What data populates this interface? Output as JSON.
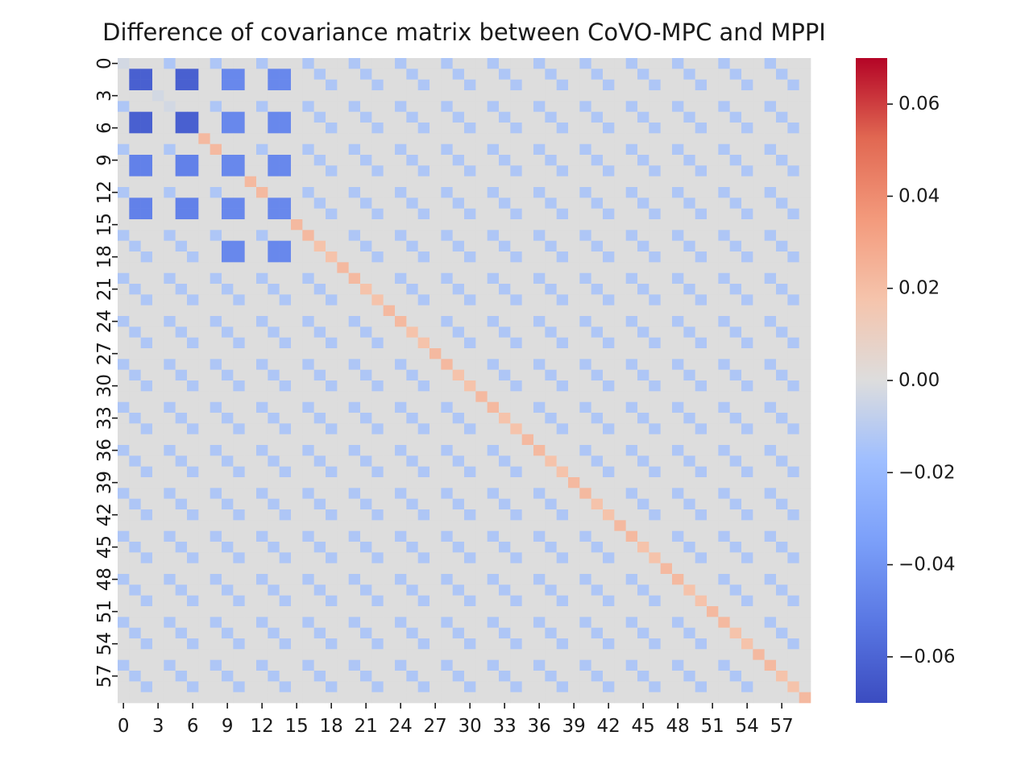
{
  "chart_data": {
    "type": "heatmap",
    "title": "Difference of covariance matrix between CoVO-MPC and MPPI",
    "xlabel": "",
    "ylabel": "",
    "size": 60,
    "x_tick_labels": [
      "0",
      "3",
      "6",
      "9",
      "12",
      "15",
      "18",
      "21",
      "24",
      "27",
      "30",
      "33",
      "36",
      "39",
      "42",
      "45",
      "48",
      "51",
      "54",
      "57"
    ],
    "y_tick_labels": [
      "0",
      "3",
      "6",
      "9",
      "12",
      "15",
      "18",
      "21",
      "24",
      "27",
      "30",
      "33",
      "36",
      "39",
      "42",
      "45",
      "48",
      "51",
      "54",
      "57"
    ],
    "colormap": "coolwarm",
    "vmin": -0.07,
    "vmax": 0.07,
    "colorbar_ticks": [
      0.06,
      0.04,
      0.02,
      0.0,
      -0.02,
      -0.04,
      -0.06
    ],
    "colorbar_tick_labels": [
      "0.06",
      "0.04",
      "0.02",
      "0.00",
      "−0.02",
      "−0.04",
      "−0.06"
    ],
    "description_of_values": {
      "background": 0.0,
      "diagonal_rows_0_to_6": -0.003,
      "diagonal_rows_7_to_59": 0.018,
      "diagonal_rows_7_to_59_max": 0.022,
      "offdiag_same_residue_mod4_nonzero": -0.013,
      "strong_blocks": [
        {
          "rows": [
            1,
            2,
            5,
            6
          ],
          "cols": [
            1,
            2,
            5,
            6
          ],
          "value": -0.062
        },
        {
          "rows": [
            1,
            2,
            5,
            6,
            9,
            10,
            13,
            14,
            17,
            18
          ],
          "cols": [
            9,
            10,
            13,
            14
          ],
          "value": -0.045
        },
        {
          "rows": [
            9,
            10,
            13,
            14
          ],
          "cols": [
            1,
            2,
            5,
            6
          ],
          "value": -0.048
        }
      ]
    }
  }
}
